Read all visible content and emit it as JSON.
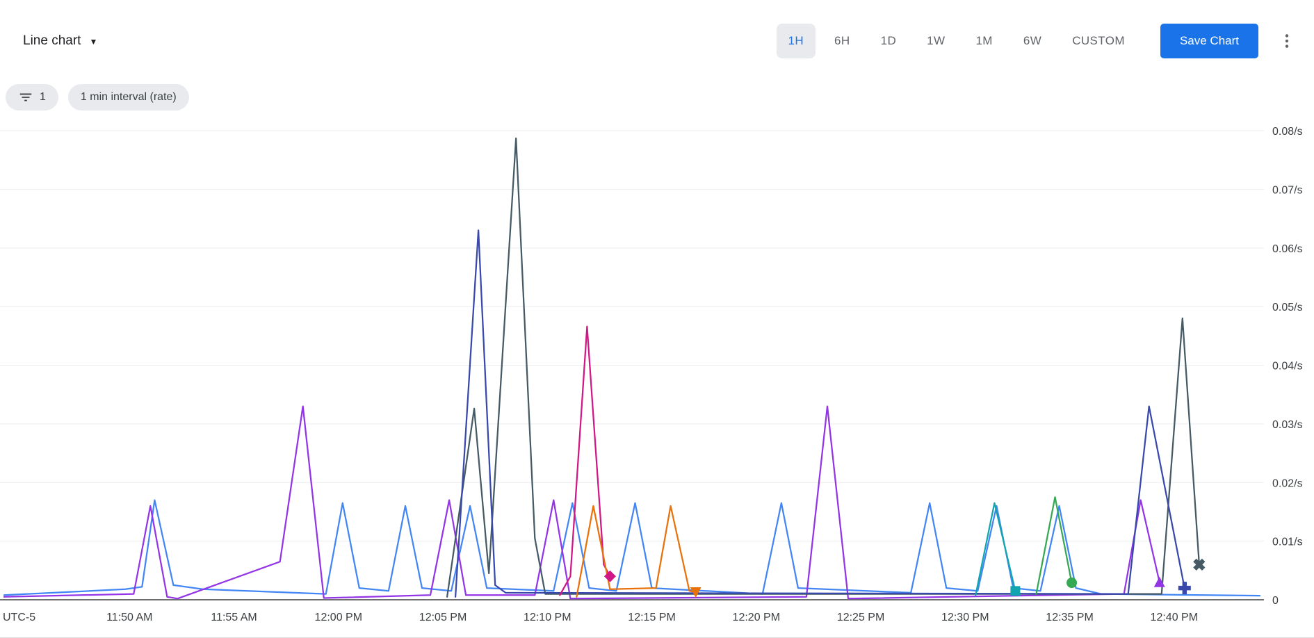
{
  "toolbar": {
    "chart_type_label": "Line chart",
    "ranges": [
      {
        "label": "1H",
        "selected": true
      },
      {
        "label": "6H",
        "selected": false
      },
      {
        "label": "1D",
        "selected": false
      },
      {
        "label": "1W",
        "selected": false
      },
      {
        "label": "1M",
        "selected": false
      },
      {
        "label": "6W",
        "selected": false
      },
      {
        "label": "CUSTOM",
        "selected": false
      }
    ],
    "save_label": "Save Chart"
  },
  "filters": {
    "filter_count": "1",
    "interval_chip_label": "1 min interval (rate)"
  },
  "colors": {
    "accent_blue": "#1a73e8",
    "selected_range_bg": "#e8eaed",
    "chip_bg": "#e8eaed",
    "text_primary": "#202124",
    "text_secondary": "#5f6368",
    "grid_line": "#ebedef",
    "axis_line": "#6f6f6f"
  },
  "chart_data": {
    "type": "line",
    "title": "Line chart",
    "grid": true,
    "legend_position": "none",
    "x_axis": {
      "timezone_label": "UTC-5",
      "domain_minutes": [
        44,
        104.2
      ],
      "ticks": [
        {
          "minute": 50,
          "label": "11:50 AM"
        },
        {
          "minute": 55,
          "label": "11:55 AM"
        },
        {
          "minute": 60,
          "label": "12:00 PM"
        },
        {
          "minute": 65,
          "label": "12:05 PM"
        },
        {
          "minute": 70,
          "label": "12:10 PM"
        },
        {
          "minute": 75,
          "label": "12:15 PM"
        },
        {
          "minute": 80,
          "label": "12:20 PM"
        },
        {
          "minute": 85,
          "label": "12:25 PM"
        },
        {
          "minute": 90,
          "label": "12:30 PM"
        },
        {
          "minute": 95,
          "label": "12:35 PM"
        },
        {
          "minute": 100,
          "label": "12:40 PM"
        }
      ]
    },
    "y_axis": {
      "unit": "/s",
      "min": 0,
      "max": 0.08,
      "ticks": [
        {
          "value": 0,
          "label": "0"
        },
        {
          "value": 0.01,
          "label": "0.01/s"
        },
        {
          "value": 0.02,
          "label": "0.02/s"
        },
        {
          "value": 0.03,
          "label": "0.03/s"
        },
        {
          "value": 0.04,
          "label": "0.04/s"
        },
        {
          "value": 0.05,
          "label": "0.05/s"
        },
        {
          "value": 0.06,
          "label": "0.06/s"
        },
        {
          "value": 0.07,
          "label": "0.07/s"
        },
        {
          "value": 0.08,
          "label": "0.08/s"
        }
      ]
    },
    "series": [
      {
        "name": "series-1-blue",
        "color": "#4285f4",
        "end_marker": null,
        "points": [
          [
            44,
            0.0008
          ],
          [
            49.8,
            0.0018
          ],
          [
            50.6,
            0.0022
          ],
          [
            51.2,
            0.017
          ],
          [
            52.1,
            0.0025
          ],
          [
            53.5,
            0.0018
          ],
          [
            59.4,
            0.001
          ],
          [
            60.2,
            0.0165
          ],
          [
            61,
            0.002
          ],
          [
            62.4,
            0.0015
          ],
          [
            63.2,
            0.016
          ],
          [
            64,
            0.002
          ],
          [
            65.4,
            0.0015
          ],
          [
            66.3,
            0.016
          ],
          [
            67.1,
            0.002
          ],
          [
            70.3,
            0.0015
          ],
          [
            71.2,
            0.0165
          ],
          [
            72,
            0.002
          ],
          [
            73.3,
            0.0015
          ],
          [
            74.2,
            0.0165
          ],
          [
            75,
            0.002
          ],
          [
            80.3,
            0.001
          ],
          [
            81.2,
            0.0165
          ],
          [
            82,
            0.002
          ],
          [
            87.4,
            0.0012
          ],
          [
            88.3,
            0.0165
          ],
          [
            89.1,
            0.002
          ],
          [
            90.6,
            0.0015
          ],
          [
            91.5,
            0.016
          ],
          [
            92.3,
            0.002
          ],
          [
            93.6,
            0.0015
          ],
          [
            94.5,
            0.016
          ],
          [
            95.3,
            0.002
          ],
          [
            96.5,
            0.001
          ],
          [
            104.1,
            0.0007
          ]
        ]
      },
      {
        "name": "series-2-purple",
        "color": "#9334e6",
        "end_marker": "triangle-up",
        "points": [
          [
            44,
            0.0005
          ],
          [
            50.2,
            0.001
          ],
          [
            51,
            0.016
          ],
          [
            51.8,
            0.0005
          ],
          [
            52.3,
            0.0002
          ],
          [
            57.2,
            0.0065
          ],
          [
            58.3,
            0.033
          ],
          [
            59.3,
            0.0003
          ],
          [
            64.4,
            0.0008
          ],
          [
            65.3,
            0.017
          ],
          [
            66.1,
            0.0008
          ],
          [
            69.4,
            0.0008
          ],
          [
            70.3,
            0.017
          ],
          [
            71.1,
            0.0002
          ],
          [
            82.4,
            0.0005
          ],
          [
            83.4,
            0.033
          ],
          [
            84.4,
            0.0002
          ],
          [
            97.6,
            0.001
          ],
          [
            98.4,
            0.017
          ],
          [
            99.3,
            0.003
          ]
        ]
      },
      {
        "name": "series-3-slate",
        "color": "#455a64",
        "end_marker": "x",
        "points": [
          [
            65.2,
            0.0005
          ],
          [
            66.5,
            0.0326
          ],
          [
            67.2,
            0.0045
          ],
          [
            68.5,
            0.0787
          ],
          [
            69.4,
            0.0105
          ],
          [
            69.9,
            0.001
          ],
          [
            99.4,
            0.001
          ],
          [
            100.4,
            0.048
          ],
          [
            101.2,
            0.006
          ]
        ]
      },
      {
        "name": "series-4-indigo",
        "color": "#3949ab",
        "end_marker": "plus",
        "points": [
          [
            65.6,
            0.0005
          ],
          [
            66.7,
            0.063
          ],
          [
            67.5,
            0.0025
          ],
          [
            68,
            0.0012
          ],
          [
            97.8,
            0.001
          ],
          [
            98.8,
            0.033
          ],
          [
            100.5,
            0.002
          ]
        ]
      },
      {
        "name": "series-5-magenta",
        "color": "#d01884",
        "end_marker": "diamond",
        "points": [
          [
            70.6,
            0.0008
          ],
          [
            71.1,
            0.004
          ],
          [
            71.9,
            0.0466
          ],
          [
            72.7,
            0.006
          ],
          [
            73,
            0.004
          ]
        ]
      },
      {
        "name": "series-6-orange",
        "color": "#e8710a",
        "end_marker": "triangle-down",
        "points": [
          [
            71.4,
            0.0005
          ],
          [
            72.2,
            0.016
          ],
          [
            73,
            0.0018
          ],
          [
            75.2,
            0.002
          ],
          [
            75.9,
            0.016
          ],
          [
            76.8,
            0.0015
          ],
          [
            77.1,
            0.0013
          ]
        ]
      },
      {
        "name": "series-7-teal",
        "color": "#12a4af",
        "end_marker": "square",
        "points": [
          [
            90.5,
            0.0008
          ],
          [
            91.4,
            0.0165
          ],
          [
            92.4,
            0.0015
          ]
        ]
      },
      {
        "name": "series-8-green",
        "color": "#34a853",
        "end_marker": "circle",
        "points": [
          [
            93.4,
            0.001
          ],
          [
            94.3,
            0.0175
          ],
          [
            95.1,
            0.0029
          ]
        ]
      }
    ]
  }
}
